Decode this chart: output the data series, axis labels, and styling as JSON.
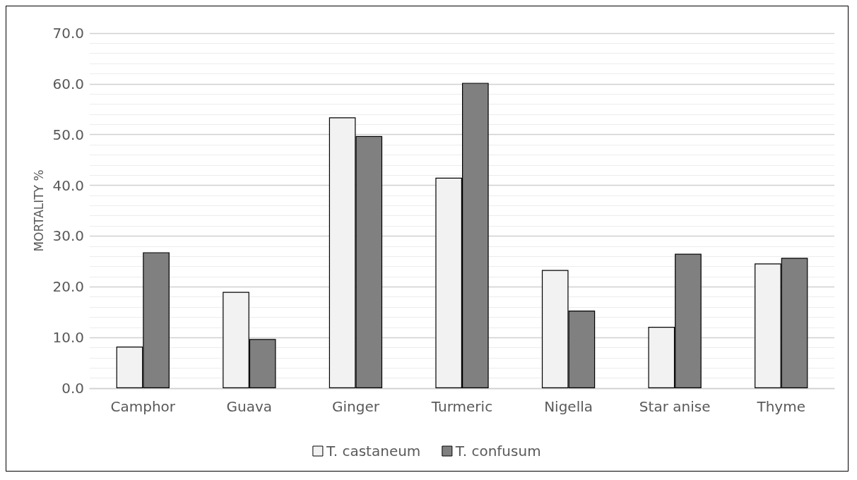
{
  "chart_data": {
    "type": "bar",
    "ylabel": "MORTALITY %",
    "categories": [
      "Camphor",
      "Guava",
      "Ginger",
      "Turmeric",
      "Nigella",
      "Star anise",
      "Thyme"
    ],
    "series": [
      {
        "name": "T. castaneum",
        "color": "#f2f2f2",
        "values": [
          8.2,
          19.0,
          53.4,
          41.5,
          23.3,
          12.1,
          24.6
        ]
      },
      {
        "name": "T. confusum",
        "color": "#808080",
        "values": [
          26.8,
          9.7,
          49.7,
          60.2,
          15.3,
          26.5,
          25.7
        ]
      }
    ],
    "ylim": [
      0,
      70
    ],
    "yticks": [
      {
        "value": 0,
        "label": "0.0"
      },
      {
        "value": 10,
        "label": "10.0"
      },
      {
        "value": 20,
        "label": "20.0"
      },
      {
        "value": 30,
        "label": "30.0"
      },
      {
        "value": 40,
        "label": "40.0"
      },
      {
        "value": 50,
        "label": "50.0"
      },
      {
        "value": 60,
        "label": "60.0"
      },
      {
        "value": 70,
        "label": "70.0"
      }
    ],
    "grid": true,
    "legend": "bottom"
  }
}
